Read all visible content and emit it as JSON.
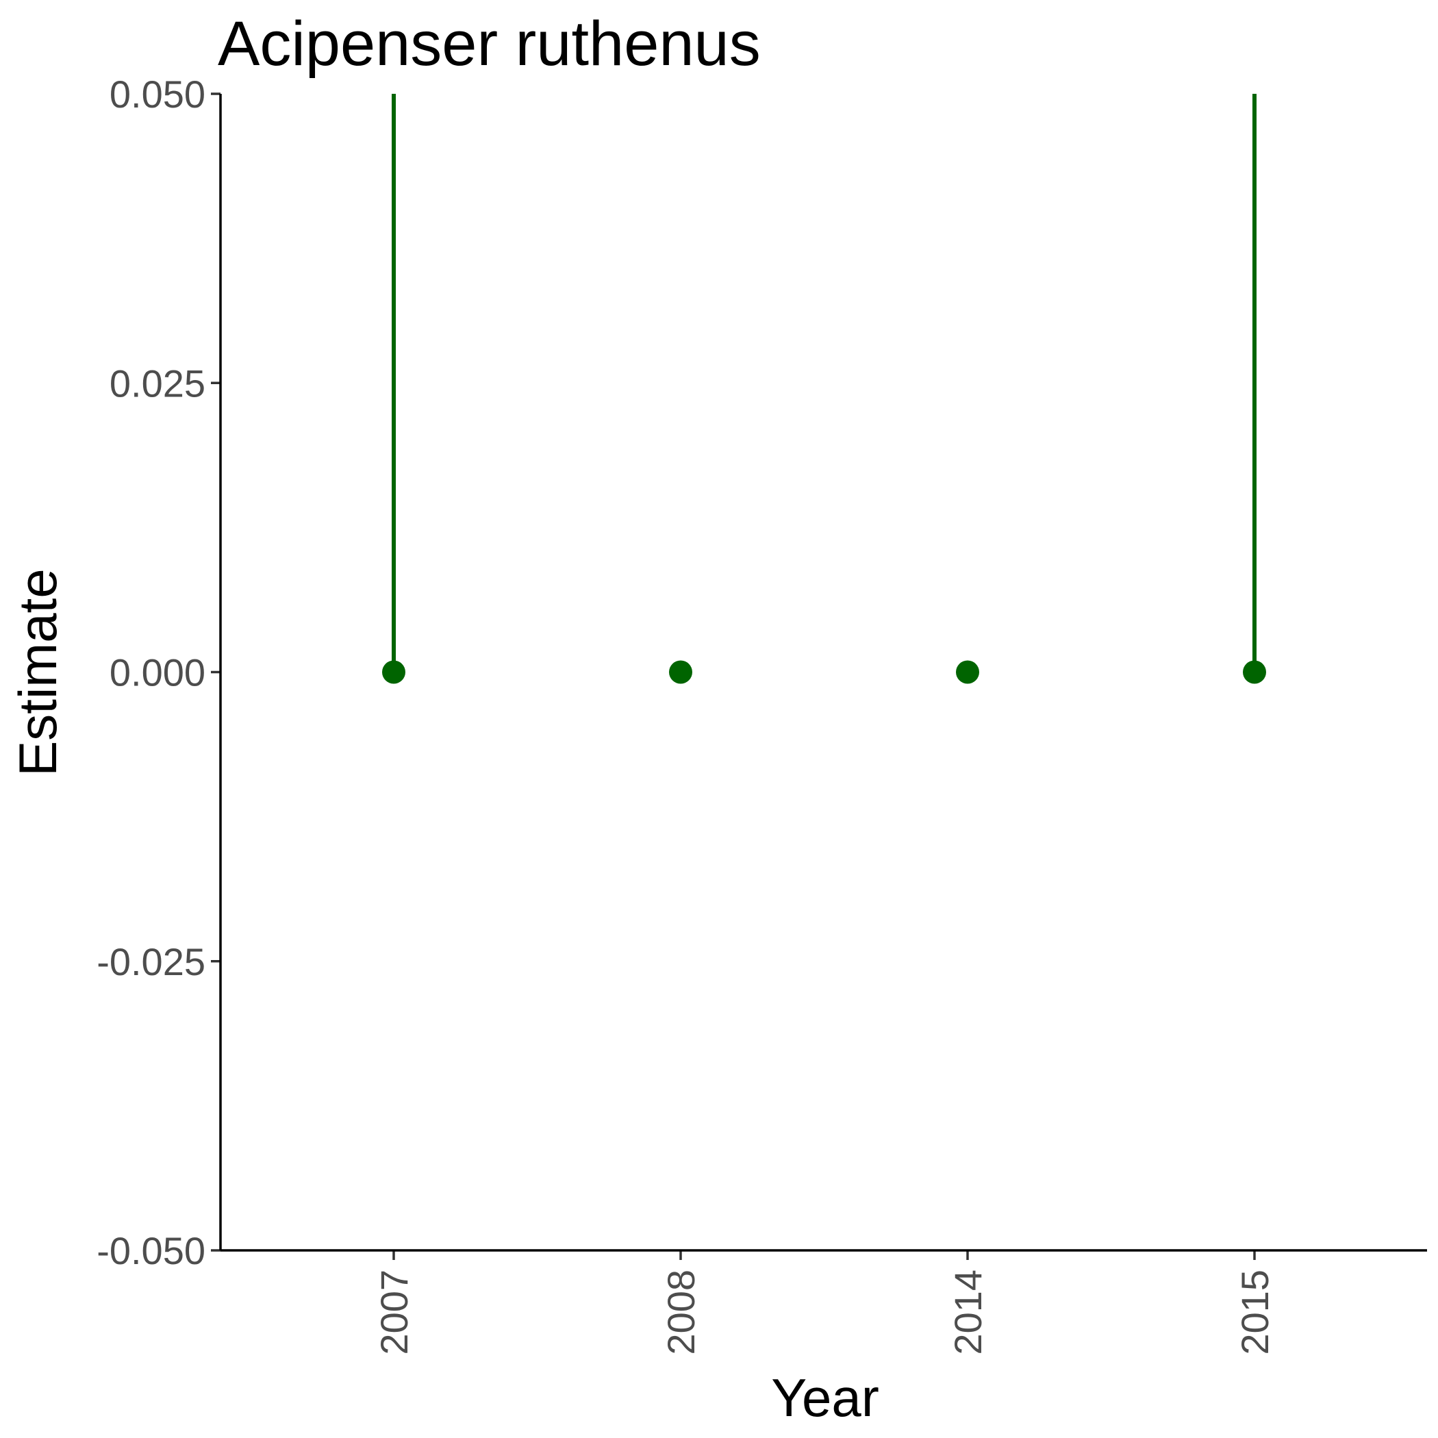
{
  "chart_data": {
    "type": "scatter",
    "title": "Acipenser ruthenus",
    "xlabel": "Year",
    "ylabel": "Estimate",
    "categories": [
      "2007",
      "2008",
      "2014",
      "2015"
    ],
    "series": [
      {
        "values": [
          0,
          0,
          0,
          0
        ],
        "upper": [
          0.05,
          null,
          null,
          0.05
        ],
        "lower": [
          0,
          null,
          null,
          0
        ],
        "color": "#006400"
      }
    ],
    "ylim": [
      -0.05,
      0.05
    ],
    "yticks": [
      "-0.050",
      "-0.025",
      "0.000",
      "0.025",
      "0.050"
    ],
    "ytick_values": [
      -0.05,
      -0.025,
      0,
      0.025,
      0.05
    ],
    "grid": false,
    "legend": "none"
  }
}
